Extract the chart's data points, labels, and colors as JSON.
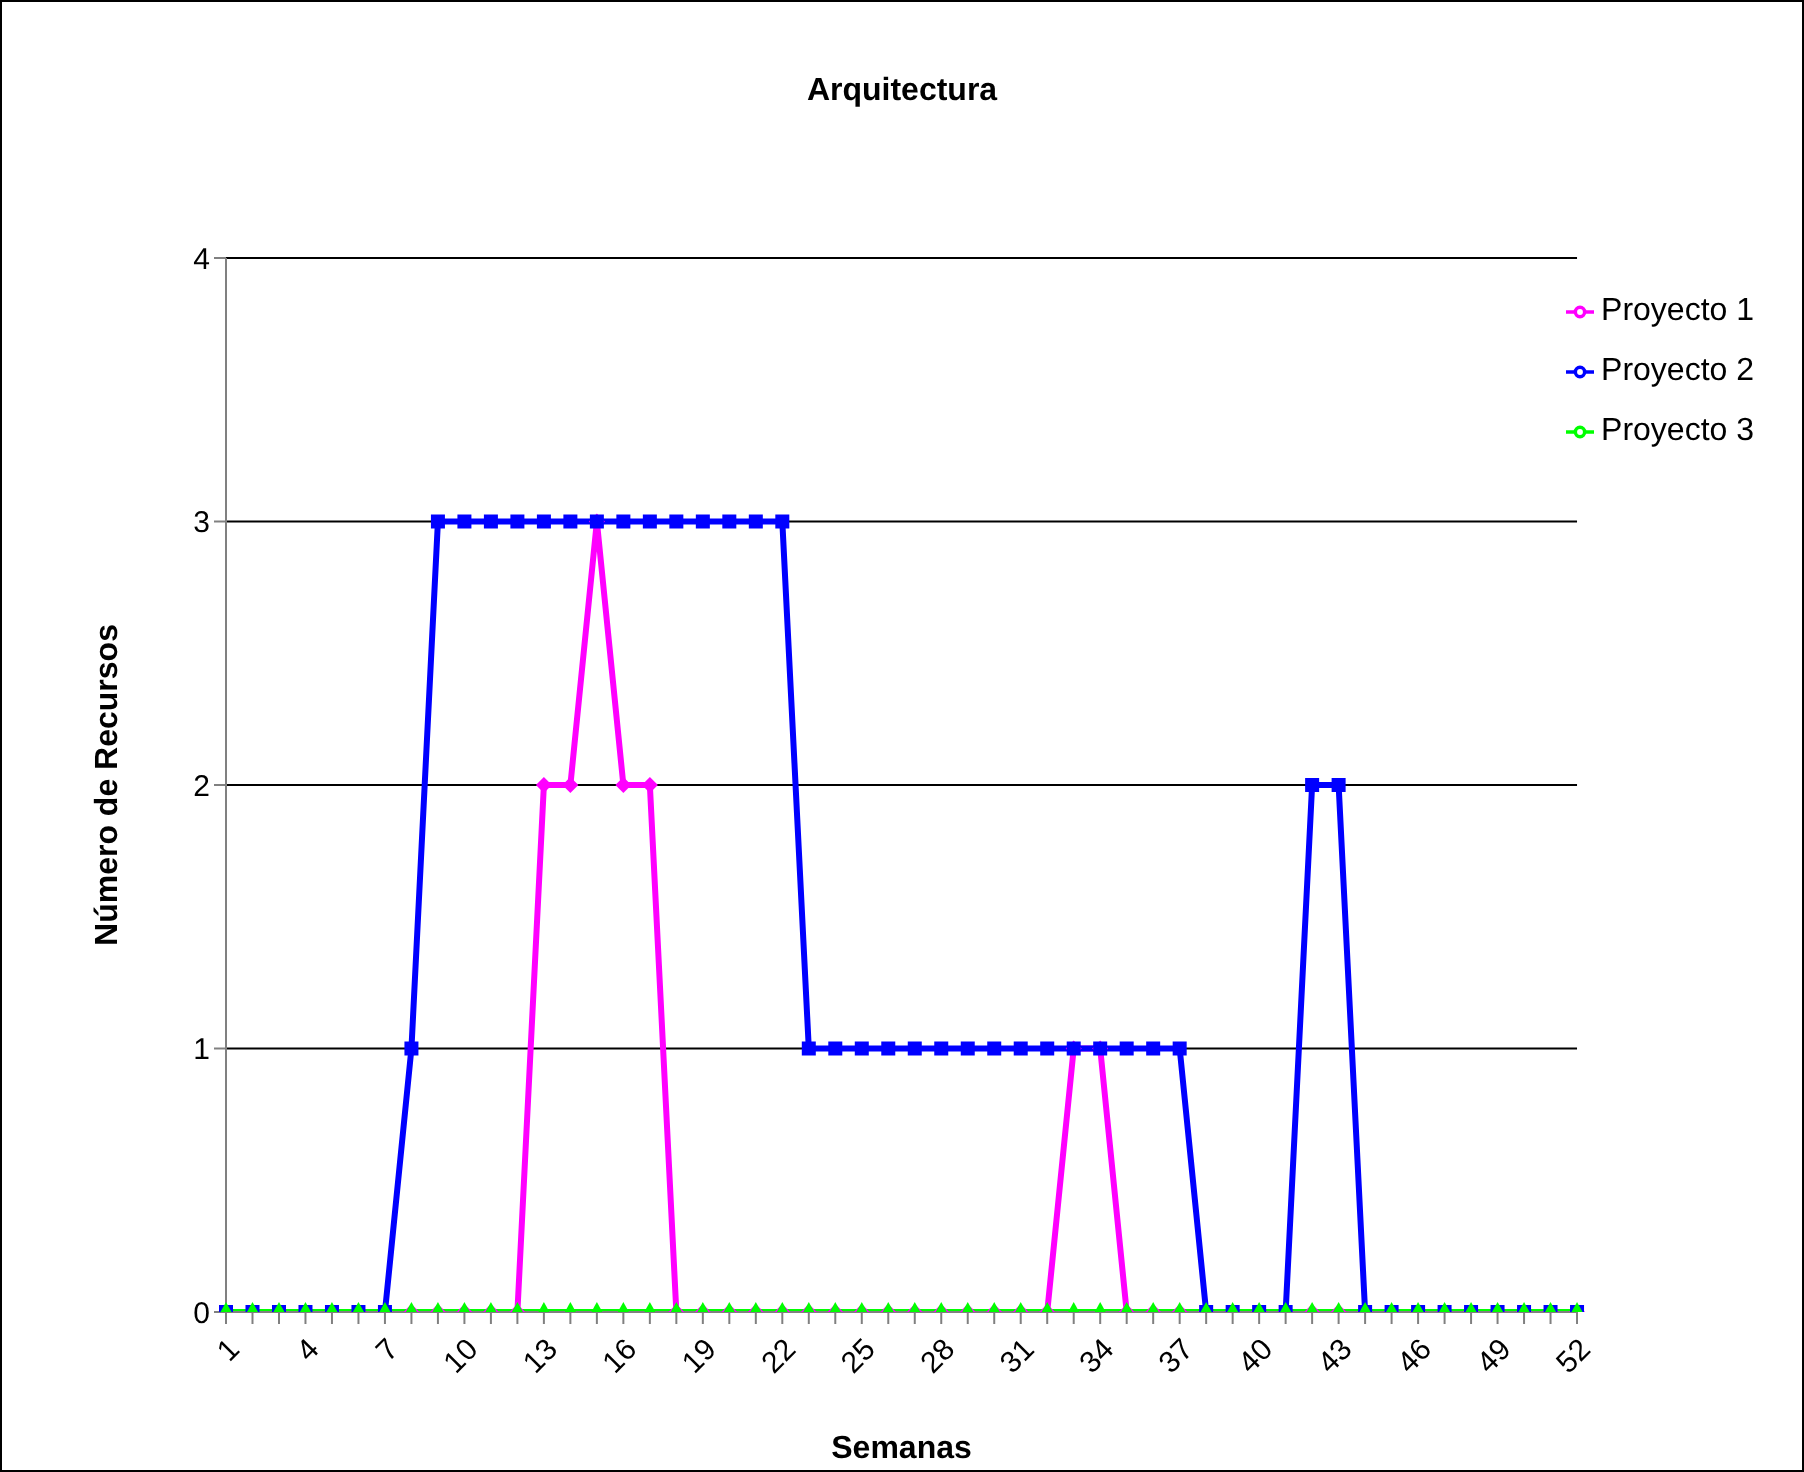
{
  "chart_data": {
    "type": "line",
    "title": "Arquitectura",
    "xlabel": "Semanas",
    "ylabel": "Número de Recursos",
    "categories": [
      "1",
      null,
      null,
      "4",
      null,
      null,
      "7",
      null,
      null,
      "10",
      null,
      null,
      "13",
      null,
      null,
      "16",
      null,
      null,
      "19",
      null,
      null,
      "22",
      null,
      null,
      "25",
      null,
      null,
      "28",
      null,
      null,
      "31",
      null,
      null,
      "34",
      null,
      null,
      "37",
      null,
      null,
      "40",
      null,
      null,
      "43",
      null,
      null,
      "46",
      null,
      null,
      "49",
      null,
      null,
      "52"
    ],
    "series": [
      {
        "name": "Proyecto 1",
        "color": "#ff00ff",
        "marker": "diamond",
        "values": [
          null,
          null,
          null,
          null,
          null,
          0,
          0,
          0,
          0,
          0,
          0,
          0,
          2,
          2,
          3,
          2,
          2,
          0,
          0,
          0,
          0,
          0,
          0,
          0,
          0,
          0,
          0,
          0,
          0,
          0,
          0,
          0,
          1,
          1,
          0,
          0,
          0,
          0,
          0,
          0,
          0,
          0,
          0,
          0,
          0,
          0,
          0,
          0,
          0,
          0,
          0,
          0
        ]
      },
      {
        "name": "Proyecto 2",
        "color": "#0000ff",
        "marker": "square",
        "values": [
          0,
          0,
          0,
          0,
          0,
          0,
          0,
          1,
          3,
          3,
          3,
          3,
          3,
          3,
          3,
          3,
          3,
          3,
          3,
          3,
          3,
          3,
          1,
          1,
          1,
          1,
          1,
          1,
          1,
          1,
          1,
          1,
          1,
          1,
          1,
          1,
          1,
          0,
          0,
          0,
          0,
          2,
          2,
          0,
          0,
          0,
          0,
          0,
          0,
          0,
          0,
          0
        ]
      },
      {
        "name": "Proyecto 3",
        "color": "#00ff00",
        "marker": "triangle",
        "values": [
          0,
          0,
          0,
          0,
          0,
          0,
          0,
          0,
          0,
          0,
          0,
          0,
          0,
          0,
          0,
          0,
          0,
          0,
          0,
          0,
          0,
          0,
          0,
          0,
          0,
          0,
          0,
          0,
          0,
          0,
          0,
          0,
          0,
          0,
          0,
          0,
          0,
          0,
          0,
          0,
          0,
          0,
          0,
          0,
          0,
          0,
          0,
          0,
          0,
          0,
          0,
          0
        ]
      }
    ],
    "ylim": [
      0,
      4
    ],
    "yticks": [
      0,
      1,
      2,
      3,
      4
    ],
    "grid": "y",
    "legend": "top right",
    "line_style": "solid"
  }
}
